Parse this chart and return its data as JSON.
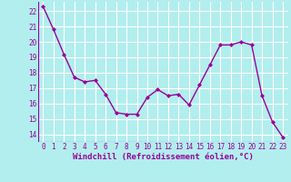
{
  "x": [
    0,
    1,
    2,
    3,
    4,
    5,
    6,
    7,
    8,
    9,
    10,
    11,
    12,
    13,
    14,
    15,
    16,
    17,
    18,
    19,
    20,
    21,
    22,
    23
  ],
  "y": [
    22.3,
    20.8,
    19.2,
    17.7,
    17.4,
    17.5,
    16.6,
    15.4,
    15.3,
    15.3,
    16.4,
    16.9,
    16.5,
    16.6,
    15.9,
    17.2,
    18.5,
    19.8,
    19.8,
    20.0,
    19.8,
    16.5,
    14.8,
    13.8
  ],
  "line_color": "#990099",
  "marker": "D",
  "marker_size": 2,
  "bg_color": "#b2eeee",
  "grid_color": "#ffffff",
  "xlabel": "Windchill (Refroidissement éolien,°C)",
  "xlabel_color": "#990099",
  "tick_color": "#990099",
  "ylim": [
    13.5,
    22.6
  ],
  "xlim": [
    -0.5,
    23.5
  ],
  "yticks": [
    14,
    15,
    16,
    17,
    18,
    19,
    20,
    21,
    22
  ],
  "xticks": [
    0,
    1,
    2,
    3,
    4,
    5,
    6,
    7,
    8,
    9,
    10,
    11,
    12,
    13,
    14,
    15,
    16,
    17,
    18,
    19,
    20,
    21,
    22,
    23
  ],
  "linewidth": 1.0,
  "tick_fontsize": 5.5,
  "xlabel_fontsize": 6.5,
  "xlabel_fontweight": "bold"
}
